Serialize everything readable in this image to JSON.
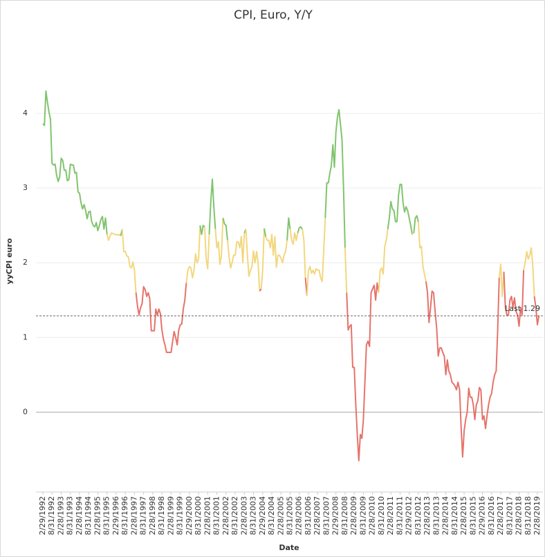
{
  "chart_data": {
    "type": "line",
    "title": "CPI, Euro, Y/Y",
    "x_label": "Date",
    "y_label": "yyCPI euro",
    "categories": [
      "2/29/1992",
      null,
      null,
      null,
      null,
      null,
      "8/31/1992",
      null,
      null,
      null,
      null,
      null,
      "2/28/1993",
      null,
      null,
      null,
      null,
      null,
      "8/31/1993",
      null,
      null,
      null,
      null,
      null,
      "2/28/1994",
      null,
      null,
      null,
      null,
      null,
      "8/31/1994",
      null,
      null,
      null,
      null,
      null,
      "2/28/1995",
      null,
      null,
      null,
      null,
      null,
      "8/31/1995",
      null,
      null,
      null,
      null,
      null,
      "2/29/1996",
      null,
      null,
      null,
      null,
      null,
      "8/31/1996",
      null,
      null,
      null,
      null,
      null,
      "2/28/1997",
      null,
      null,
      null,
      null,
      null,
      "8/31/1997",
      null,
      null,
      null,
      null,
      null,
      "2/28/1998",
      null,
      null,
      null,
      null,
      null,
      "8/31/1998",
      null,
      null,
      null,
      null,
      null,
      "2/28/1999",
      null,
      null,
      null,
      null,
      null,
      "8/31/1999",
      null,
      null,
      null,
      null,
      null,
      "2/29/2000",
      null,
      null,
      null,
      null,
      null,
      "8/31/2000",
      null,
      null,
      null,
      null,
      null,
      "2/28/2001",
      null,
      null,
      null,
      null,
      null,
      "8/31/2001",
      null,
      null,
      null,
      null,
      null,
      "2/28/2002",
      null,
      null,
      null,
      null,
      null,
      "8/31/2002",
      null,
      null,
      null,
      null,
      null,
      "2/28/2003",
      null,
      null,
      null,
      null,
      null,
      "8/31/2003",
      null,
      null,
      null,
      null,
      null,
      "2/29/2004",
      null,
      null,
      null,
      null,
      null,
      "8/31/2004",
      null,
      null,
      null,
      null,
      null,
      "2/28/2005",
      null,
      null,
      null,
      null,
      null,
      "8/31/2005",
      null,
      null,
      null,
      null,
      null,
      "2/28/2006",
      null,
      null,
      null,
      null,
      null,
      "8/31/2006",
      null,
      null,
      null,
      null,
      null,
      "2/28/2007",
      null,
      null,
      null,
      null,
      null,
      "8/31/2007",
      null,
      null,
      null,
      null,
      null,
      "2/29/2008",
      null,
      null,
      null,
      null,
      null,
      "8/31/2008",
      null,
      null,
      null,
      null,
      null,
      "2/28/2009",
      null,
      null,
      null,
      null,
      null,
      "8/31/2009",
      null,
      null,
      null,
      null,
      null,
      "2/28/2010",
      null,
      null,
      null,
      null,
      null,
      "8/31/2010",
      null,
      null,
      null,
      null,
      null,
      "2/28/2011",
      null,
      null,
      null,
      null,
      null,
      "8/31/2011",
      null,
      null,
      null,
      null,
      null,
      "2/29/2012",
      null,
      null,
      null,
      null,
      null,
      "8/31/2012",
      null,
      null,
      null,
      null,
      null,
      "2/28/2013",
      null,
      null,
      null,
      null,
      null,
      "8/31/2013",
      null,
      null,
      null,
      null,
      null,
      "2/28/2014",
      null,
      null,
      null,
      null,
      null,
      "8/31/2014",
      null,
      null,
      null,
      null,
      null,
      "2/28/2015",
      null,
      null,
      null,
      null,
      null,
      "8/31/2015",
      null,
      null,
      null,
      null,
      null,
      "2/29/2016",
      null,
      null,
      null,
      null,
      null,
      "8/31/2016",
      null,
      null,
      null,
      null,
      null,
      "2/28/2017",
      null,
      null,
      null,
      null,
      null,
      "8/31/2017",
      null,
      null,
      null,
      null,
      null,
      "2/28/2018",
      null,
      null,
      null,
      null,
      null,
      "8/31/2018",
      null,
      null,
      null,
      null,
      null,
      "2/28/2019",
      null
    ],
    "values": [
      3.86,
      3.84,
      4.3,
      4.15,
      4.02,
      3.92,
      3.33,
      3.31,
      3.32,
      3.17,
      3.09,
      3.15,
      3.4,
      3.37,
      3.24,
      3.24,
      3.1,
      3.11,
      3.32,
      3.31,
      3.31,
      3.2,
      3.21,
      2.95,
      2.93,
      2.8,
      2.72,
      2.78,
      2.7,
      2.59,
      2.68,
      2.69,
      2.55,
      2.5,
      2.48,
      2.54,
      2.43,
      2.5,
      2.58,
      2.62,
      2.45,
      2.6,
      2.38,
      2.3,
      2.36,
      2.4,
      2.39,
      2.38,
      2.38,
      2.37,
      2.38,
      2.36,
      2.45,
      2.15,
      2.15,
      2.09,
      2.08,
      1.95,
      1.93,
      2.01,
      1.9,
      1.6,
      1.42,
      1.3,
      1.4,
      1.45,
      1.68,
      1.64,
      1.55,
      1.6,
      1.52,
      1.09,
      1.09,
      1.09,
      1.38,
      1.3,
      1.38,
      1.32,
      1.1,
      0.98,
      0.9,
      0.8,
      0.8,
      0.8,
      0.8,
      0.95,
      1.08,
      1.0,
      0.9,
      1.1,
      1.17,
      1.18,
      1.38,
      1.5,
      1.73,
      1.9,
      1.95,
      1.93,
      1.8,
      1.9,
      2.12,
      2.0,
      2.05,
      2.5,
      2.38,
      2.5,
      2.48,
      2.05,
      1.92,
      2.38,
      2.8,
      3.12,
      2.75,
      2.45,
      2.2,
      2.28,
      1.98,
      2.1,
      2.6,
      2.52,
      2.5,
      2.3,
      2.08,
      1.93,
      2.0,
      2.1,
      2.1,
      2.28,
      2.28,
      2.2,
      2.35,
      2.0,
      2.4,
      2.45,
      2.1,
      1.82,
      1.9,
      1.95,
      2.16,
      2.0,
      2.15,
      2.0,
      1.62,
      1.65,
      1.9,
      2.46,
      2.35,
      2.3,
      2.3,
      2.2,
      2.38,
      2.1,
      2.35,
      1.94,
      2.1,
      2.1,
      2.06,
      2.0,
      2.1,
      2.15,
      2.3,
      2.6,
      2.45,
      2.3,
      2.25,
      2.4,
      2.3,
      2.4,
      2.47,
      2.48,
      2.45,
      2.3,
      1.8,
      1.56,
      1.9,
      1.95,
      1.86,
      1.9,
      1.85,
      1.92,
      1.9,
      1.9,
      1.8,
      1.75,
      2.15,
      2.6,
      3.07,
      3.07,
      3.2,
      3.3,
      3.58,
      3.28,
      3.75,
      3.95,
      4.05,
      3.85,
      3.65,
      3.0,
      2.2,
      1.6,
      1.1,
      1.15,
      1.17,
      0.6,
      0.6,
      0.1,
      -0.3,
      -0.65,
      -0.3,
      -0.35,
      -0.1,
      0.4,
      0.9,
      0.95,
      0.88,
      1.6,
      1.65,
      1.7,
      1.5,
      1.73,
      1.6,
      1.9,
      1.93,
      1.85,
      2.22,
      2.3,
      2.45,
      2.6,
      2.82,
      2.72,
      2.7,
      2.55,
      2.55,
      2.9,
      3.05,
      3.05,
      2.8,
      2.68,
      2.75,
      2.7,
      2.6,
      2.5,
      2.38,
      2.4,
      2.6,
      2.63,
      2.55,
      2.2,
      2.22,
      1.95,
      1.85,
      1.75,
      1.6,
      1.2,
      1.4,
      1.62,
      1.6,
      1.35,
      1.12,
      0.75,
      0.86,
      0.86,
      0.8,
      0.75,
      0.5,
      0.7,
      0.55,
      0.5,
      0.4,
      0.38,
      0.35,
      0.3,
      0.4,
      0.3,
      -0.2,
      -0.6,
      -0.25,
      -0.1,
      0.0,
      0.32,
      0.2,
      0.2,
      0.1,
      -0.1,
      0.1,
      0.15,
      0.33,
      0.3,
      -0.1,
      -0.05,
      -0.22,
      -0.05,
      0.1,
      0.2,
      0.25,
      0.4,
      0.5,
      0.55,
      1.1,
      1.8,
      1.98,
      1.55,
      1.88,
      1.4,
      1.3,
      1.3,
      1.5,
      1.55,
      1.4,
      1.53,
      1.35,
      1.3,
      1.15,
      1.4,
      1.3,
      1.9,
      2.0,
      2.15,
      2.05,
      2.1,
      2.2,
      1.95,
      1.55,
      1.4,
      1.17,
      1.29
    ],
    "color_scale": {
      "thresholds": [
        1.7,
        2.4
      ],
      "colors": [
        "#e5736a",
        "#f2d77e",
        "#80c46d"
      ]
    },
    "ylim": [
      -1.07,
      5.13
    ],
    "yticks": [
      0,
      1,
      2,
      3,
      4
    ],
    "grid": true,
    "reference_line": {
      "value": 1.29,
      "label": "Last 1.29"
    }
  }
}
